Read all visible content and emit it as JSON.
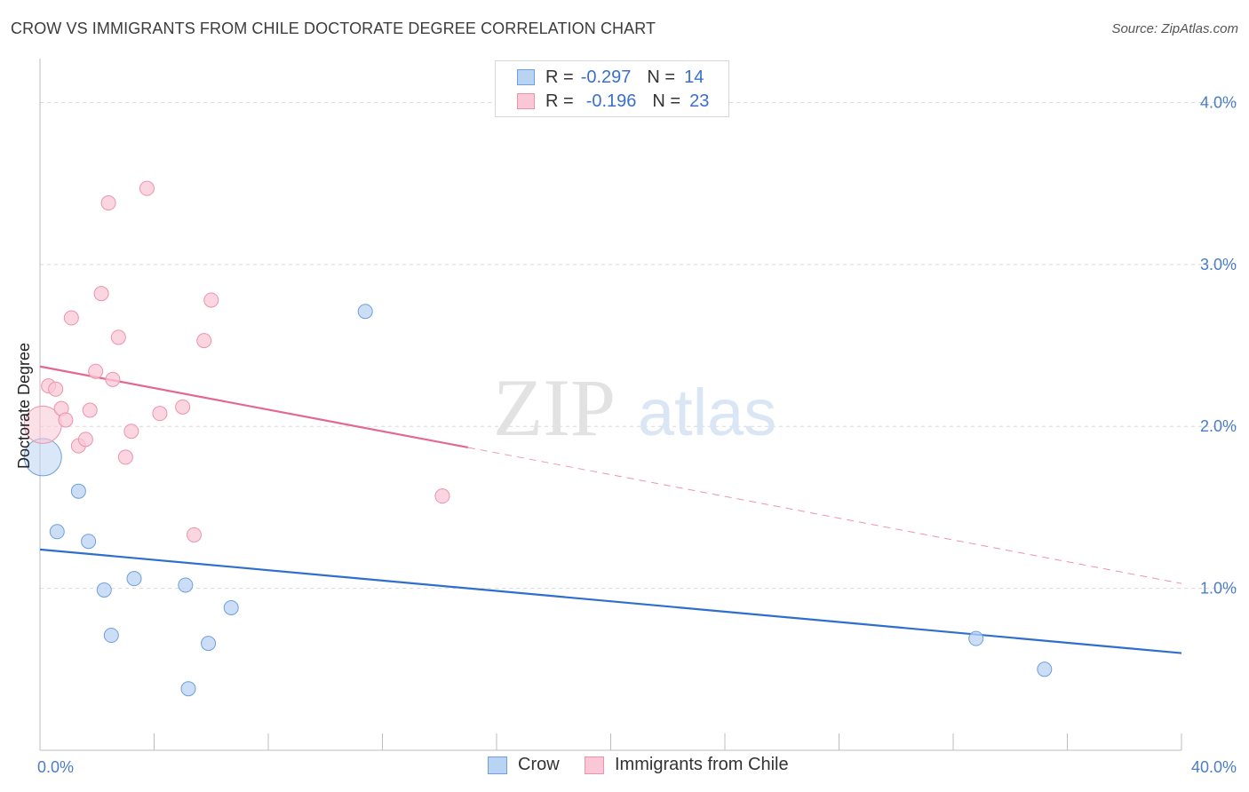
{
  "title": "CROW VS IMMIGRANTS FROM CHILE DOCTORATE DEGREE CORRELATION CHART",
  "source": "Source: ZipAtlas.com",
  "watermark": {
    "zip": "ZIP",
    "atlas": "atlas"
  },
  "legend": {
    "crow": {
      "r_label": "R =",
      "r_value": "-0.297",
      "n_label": "N =",
      "n_value": "14"
    },
    "chile": {
      "r_label": "R =",
      "r_value": "-0.196",
      "n_label": "N =",
      "n_value": "23"
    }
  },
  "bottom_legend": {
    "crow": "Crow",
    "chile": "Immigrants from Chile"
  },
  "colors": {
    "crow_fill": "#b9d3f3",
    "crow_stroke": "#6f9fdc",
    "crow_line": "#2f6fcc",
    "chile_fill": "#f9c7d5",
    "chile_stroke": "#eb93ad",
    "chile_line": "#e4678f",
    "grid": "#d9d9d9",
    "axis_label": "#4a7cc9"
  },
  "chart_data": {
    "type": "scatter",
    "title": "CROW VS IMMIGRANTS FROM CHILE DOCTORATE DEGREE CORRELATION CHART",
    "xlabel": "",
    "ylabel": "Doctorate Degree",
    "xlim": [
      0,
      40
    ],
    "ylim": [
      0,
      4.2
    ],
    "x_tick_labels": [
      {
        "value": 0,
        "label": "0.0%"
      },
      {
        "value": 40,
        "label": "40.0%"
      }
    ],
    "y_ticks": [
      {
        "value": 1,
        "label": "1.0%"
      },
      {
        "value": 2,
        "label": "2.0%"
      },
      {
        "value": 3,
        "label": "3.0%"
      },
      {
        "value": 4,
        "label": "4.0%"
      }
    ],
    "series": [
      {
        "name": "Crow",
        "points": [
          {
            "x": 0.1,
            "y": 1.81,
            "big": true
          },
          {
            "x": 0.6,
            "y": 1.35
          },
          {
            "x": 1.35,
            "y": 1.6
          },
          {
            "x": 1.7,
            "y": 1.29
          },
          {
            "x": 2.25,
            "y": 0.99
          },
          {
            "x": 2.5,
            "y": 0.71
          },
          {
            "x": 3.3,
            "y": 1.06
          },
          {
            "x": 5.1,
            "y": 1.02
          },
          {
            "x": 5.2,
            "y": 0.38
          },
          {
            "x": 5.9,
            "y": 0.66
          },
          {
            "x": 6.7,
            "y": 0.88
          },
          {
            "x": 11.4,
            "y": 2.71
          },
          {
            "x": 32.8,
            "y": 0.69
          },
          {
            "x": 35.2,
            "y": 0.5
          }
        ],
        "trend": {
          "x1": 0,
          "y1": 1.24,
          "x2": 40,
          "y2": 0.6
        }
      },
      {
        "name": "Immigrants from Chile",
        "points": [
          {
            "x": 0.1,
            "y": 2.01,
            "big": true
          },
          {
            "x": 0.3,
            "y": 2.25
          },
          {
            "x": 0.55,
            "y": 2.23
          },
          {
            "x": 0.75,
            "y": 2.11
          },
          {
            "x": 0.9,
            "y": 2.04
          },
          {
            "x": 1.1,
            "y": 2.67
          },
          {
            "x": 1.35,
            "y": 1.88
          },
          {
            "x": 1.6,
            "y": 1.92
          },
          {
            "x": 1.75,
            "y": 2.1
          },
          {
            "x": 1.95,
            "y": 2.34
          },
          {
            "x": 2.15,
            "y": 2.82
          },
          {
            "x": 2.4,
            "y": 3.38
          },
          {
            "x": 2.55,
            "y": 2.29
          },
          {
            "x": 2.75,
            "y": 2.55
          },
          {
            "x": 3.0,
            "y": 1.81
          },
          {
            "x": 3.2,
            "y": 1.97
          },
          {
            "x": 3.75,
            "y": 3.47
          },
          {
            "x": 4.2,
            "y": 2.08
          },
          {
            "x": 5.0,
            "y": 2.12
          },
          {
            "x": 5.4,
            "y": 1.33
          },
          {
            "x": 5.75,
            "y": 2.53
          },
          {
            "x": 6.0,
            "y": 2.78
          },
          {
            "x": 14.1,
            "y": 1.57
          }
        ],
        "trend": {
          "x1": 0,
          "y1": 2.37,
          "x2": 15,
          "y2": 1.87
        },
        "trend_dashed": {
          "x1": 15,
          "y1": 1.87,
          "x2": 40,
          "y2": 1.03
        }
      }
    ]
  }
}
